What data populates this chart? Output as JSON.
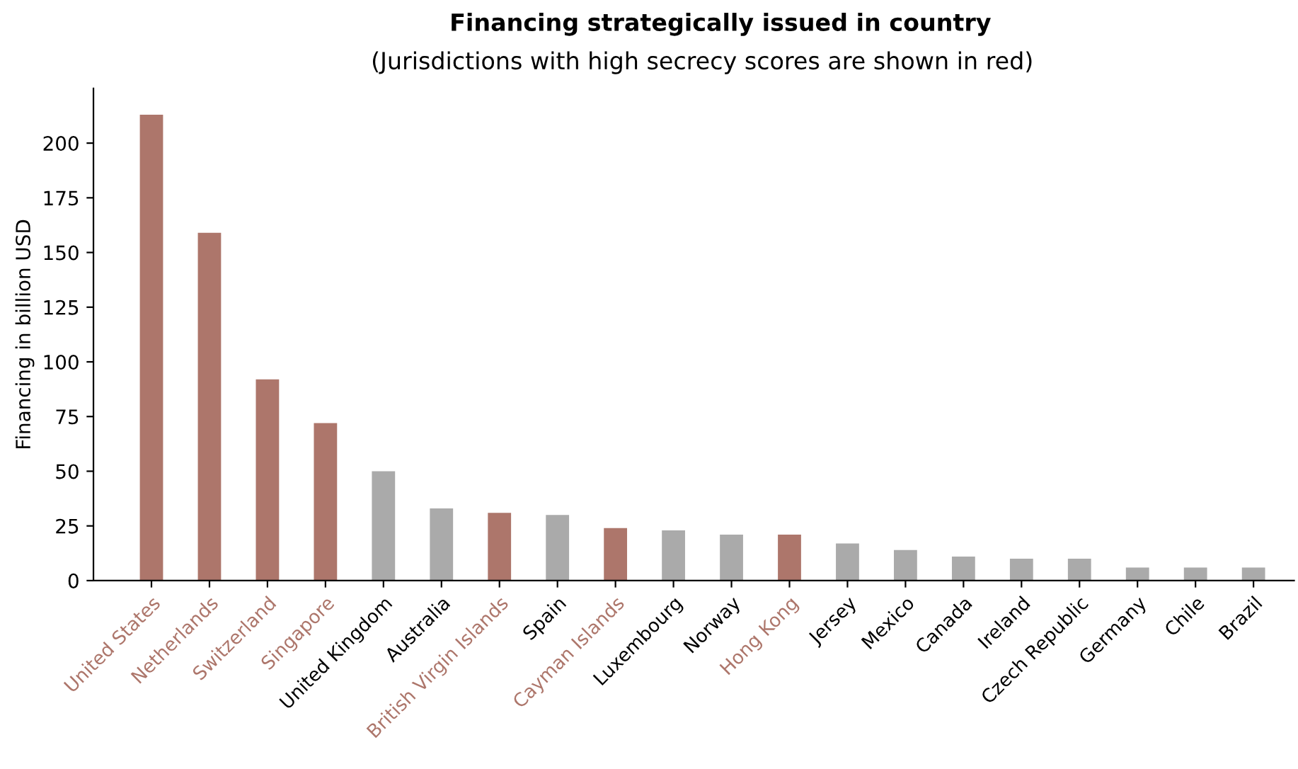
{
  "chart_data": {
    "type": "bar",
    "title": "Financing strategically issued in country",
    "subtitle": "(Jurisdictions with high secrecy scores are shown in red)",
    "ylabel": "Financing in billion USD",
    "categories": [
      "United States",
      "Netherlands",
      "Switzerland",
      "Singapore",
      "United Kingdom",
      "Australia",
      "British Virgin Islands",
      "Spain",
      "Cayman Islands",
      "Luxembourg",
      "Norway",
      "Hong Kong",
      "Jersey",
      "Mexico",
      "Canada",
      "Ireland",
      "Czech Republic",
      "Germany",
      "Chile",
      "Brazil"
    ],
    "values": [
      213,
      159,
      92,
      72,
      50,
      33,
      31,
      30,
      24,
      23,
      21,
      21,
      17,
      14,
      11,
      10,
      10,
      6,
      6,
      6
    ],
    "colors": [
      "#ad766b",
      "#ad766b",
      "#ad766b",
      "#ad766b",
      "#aaaaaa",
      "#aaaaaa",
      "#ad766b",
      "#aaaaaa",
      "#ad766b",
      "#aaaaaa",
      "#aaaaaa",
      "#ad766b",
      "#aaaaaa",
      "#aaaaaa",
      "#aaaaaa",
      "#aaaaaa",
      "#aaaaaa",
      "#aaaaaa",
      "#aaaaaa",
      "#aaaaaa"
    ],
    "ylim": [
      0,
      225
    ],
    "yticks": [
      0,
      25,
      50,
      75,
      100,
      125,
      150,
      175,
      200
    ],
    "grid": false
  }
}
